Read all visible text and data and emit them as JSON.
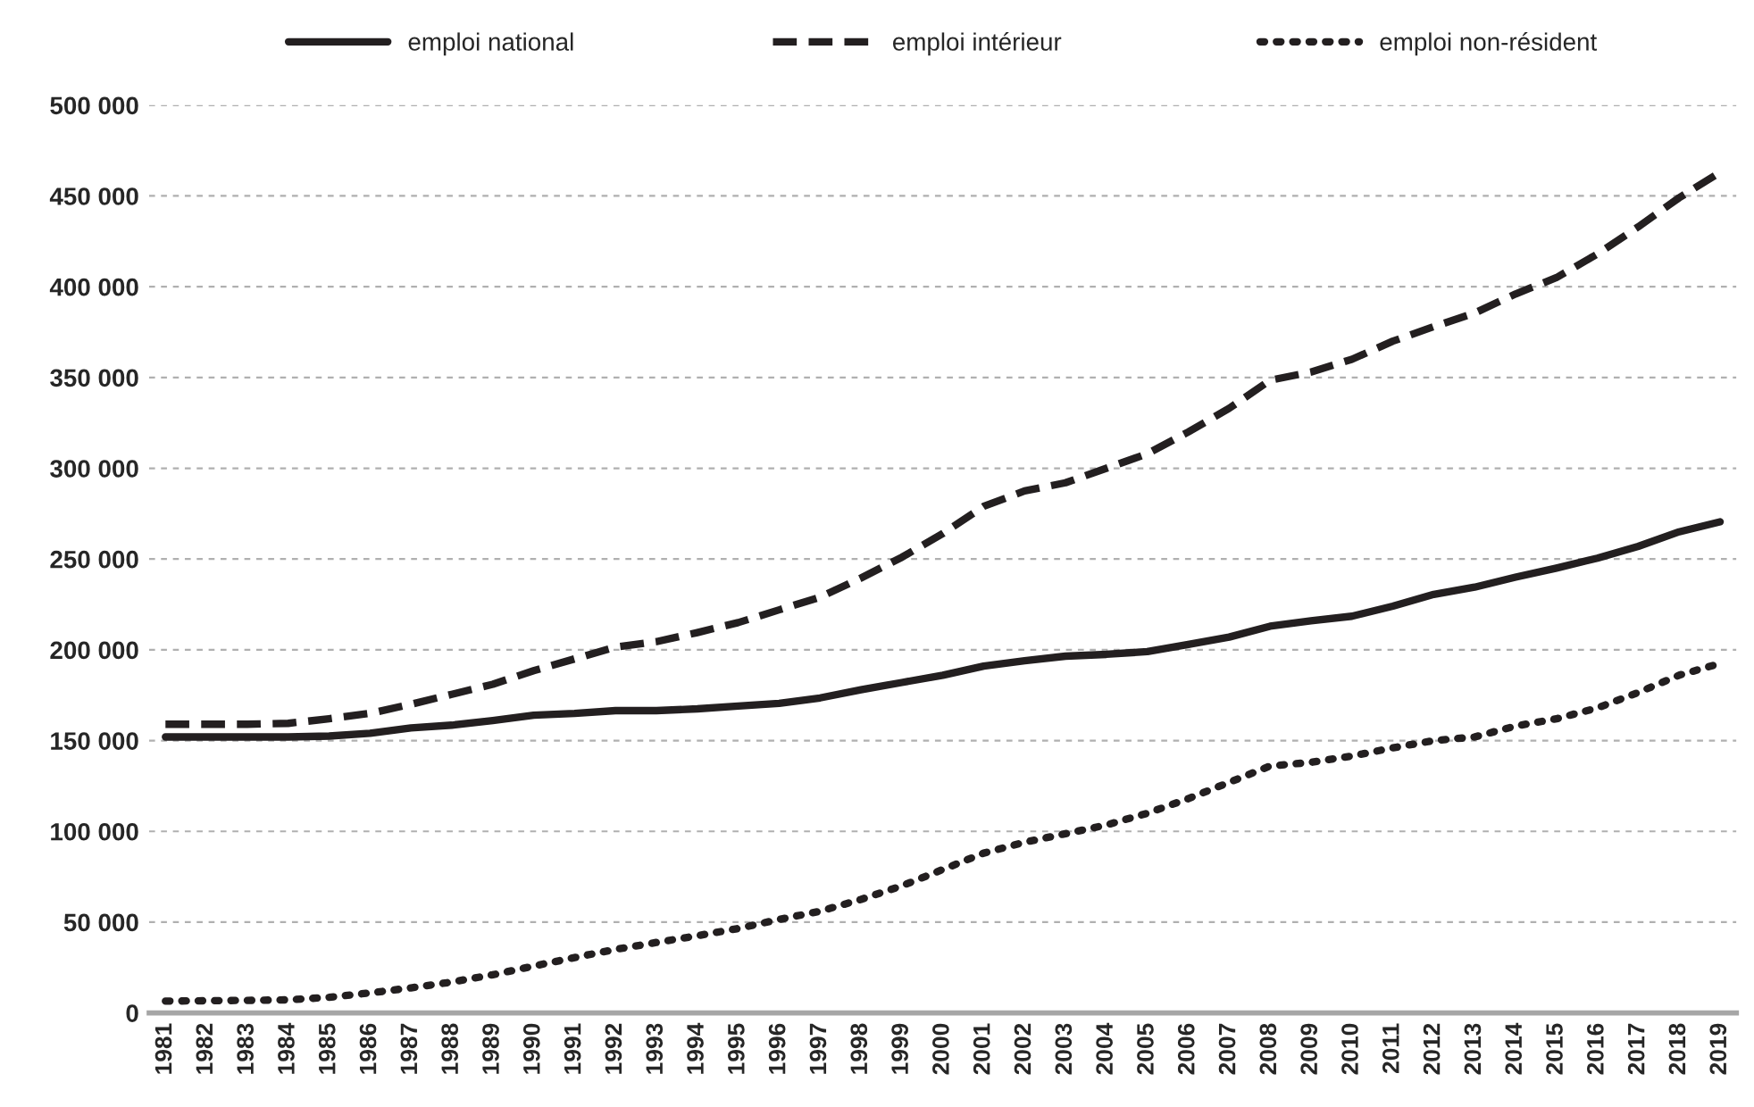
{
  "chart_data": {
    "type": "line",
    "categories": [
      "1981",
      "1982",
      "1983",
      "1984",
      "1985",
      "1986",
      "1987",
      "1988",
      "1989",
      "1990",
      "1991",
      "1992",
      "1993",
      "1994",
      "1995",
      "1996",
      "1997",
      "1998",
      "1999",
      "2000",
      "2001",
      "2002",
      "2003",
      "2004",
      "2005",
      "2006",
      "2007",
      "2008",
      "2009",
      "2010",
      "2011",
      "2012",
      "2013",
      "2014",
      "2015",
      "2016",
      "2017",
      "2018",
      "2019"
    ],
    "series": [
      {
        "name": "emploi national",
        "color": "#231f20",
        "line_style": "solid",
        "values": [
          152000,
          152000,
          152000,
          152000,
          152500,
          154000,
          157000,
          158500,
          161000,
          164000,
          165000,
          166500,
          166500,
          167500,
          169000,
          170500,
          173500,
          178000,
          182000,
          186000,
          191000,
          194000,
          196500,
          197500,
          199000,
          203000,
          207000,
          213000,
          216000,
          218500,
          224000,
          230500,
          234500,
          240000,
          245000,
          250500,
          257000,
          265000,
          270500
        ]
      },
      {
        "name": "emploi intérieur",
        "color": "#231f20",
        "line_style": "dashed",
        "values": [
          159000,
          159000,
          159000,
          159500,
          162000,
          165000,
          170000,
          175500,
          181000,
          188500,
          195000,
          201500,
          204500,
          209500,
          215000,
          222000,
          229000,
          239500,
          251000,
          264000,
          279000,
          287500,
          292000,
          300000,
          308000,
          320000,
          333000,
          348500,
          353000,
          360000,
          370000,
          378000,
          385500,
          396000,
          405000,
          418000,
          433000,
          449000,
          463000
        ]
      },
      {
        "name": "emploi non-résident",
        "color": "#231f20",
        "line_style": "dotted",
        "values": [
          6500,
          6700,
          6900,
          7200,
          8600,
          11000,
          13800,
          17000,
          21000,
          25800,
          30500,
          35000,
          38800,
          42500,
          46500,
          51500,
          56000,
          62500,
          70000,
          79000,
          88000,
          94000,
          98700,
          103500,
          110000,
          118000,
          127000,
          136000,
          138000,
          141500,
          146000,
          150000,
          152000,
          158000,
          162000,
          168000,
          176500,
          186000,
          192500
        ]
      }
    ],
    "ylim": [
      0,
      500000
    ],
    "yticks": [
      {
        "value": 0,
        "label": "0"
      },
      {
        "value": 50000,
        "label": "50 000"
      },
      {
        "value": 100000,
        "label": "100 000"
      },
      {
        "value": 150000,
        "label": "150 000"
      },
      {
        "value": 200000,
        "label": "200 000"
      },
      {
        "value": 250000,
        "label": "250 000"
      },
      {
        "value": 300000,
        "label": "300 000"
      },
      {
        "value": 350000,
        "label": "350 000"
      },
      {
        "value": 400000,
        "label": "400 000"
      },
      {
        "value": 450000,
        "label": "450 000"
      },
      {
        "value": 500000,
        "label": "500 000"
      }
    ],
    "grid": "y",
    "legend": "top",
    "marker": "none"
  }
}
